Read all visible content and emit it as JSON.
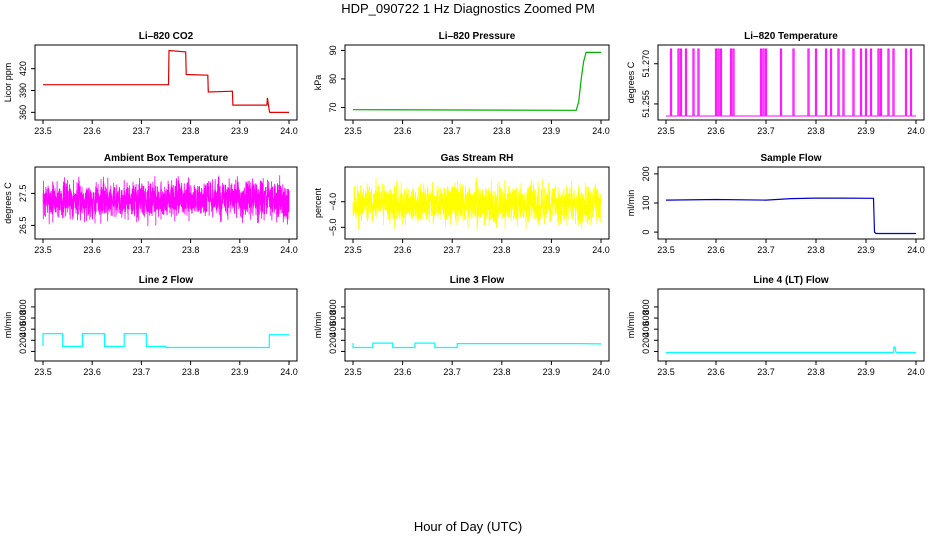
{
  "title": "HDP_090722  1 Hz Diagnostics Zoomed PM",
  "xlabel": "Hour of Day (UTC)",
  "chart_data": [
    {
      "type": "line",
      "title": "Li–820 CO2",
      "xlabel": "",
      "ylabel": "Licor ppm",
      "color": "#e00000",
      "xlim": [
        23.5,
        24.0
      ],
      "ylim": [
        355,
        447
      ],
      "xticks": [
        23.5,
        23.6,
        23.7,
        23.8,
        23.9,
        24.0
      ],
      "yticks": [
        360,
        390,
        420
      ],
      "xtick_labels": [
        "23.5",
        "23.6",
        "23.7",
        "23.8",
        "23.9",
        "24.0"
      ],
      "ytick_labels": [
        "360",
        "390",
        "420"
      ],
      "series": [
        {
          "x": [
            23.5,
            23.755,
            23.756,
            23.79,
            23.791,
            23.835,
            23.836,
            23.885,
            23.886,
            23.955,
            23.956,
            23.96,
            23.961,
            24.0
          ],
          "y": [
            398,
            398,
            445,
            443,
            412,
            411,
            388,
            389,
            370,
            370,
            380,
            362,
            360,
            360
          ]
        }
      ]
    },
    {
      "type": "line",
      "title": "Li–820 Pressure",
      "xlabel": "",
      "ylabel": "kPa",
      "color": "#00b000",
      "xlim": [
        23.5,
        24.0
      ],
      "ylim": [
        67,
        90.5
      ],
      "xticks": [
        23.5,
        23.6,
        23.7,
        23.8,
        23.9,
        24.0
      ],
      "yticks": [
        70,
        80,
        90
      ],
      "xtick_labels": [
        "23.5",
        "23.6",
        "23.7",
        "23.8",
        "23.9",
        "24.0"
      ],
      "ytick_labels": [
        "70",
        "80",
        "90"
      ],
      "series": [
        {
          "x": [
            23.5,
            23.935,
            23.95,
            23.955,
            23.96,
            23.965,
            23.97,
            24.0
          ],
          "y": [
            69.2,
            69.0,
            69.0,
            72,
            80,
            86,
            89.3,
            89.3
          ]
        }
      ]
    },
    {
      "type": "line",
      "title": "Li–820 Temperature",
      "xlabel": "",
      "ylabel": "degrees C",
      "color": "#ff00ff",
      "xlim": [
        23.5,
        24.0
      ],
      "ylim": [
        51.2505,
        51.2755
      ],
      "xticks": [
        23.5,
        23.6,
        23.7,
        23.8,
        23.9,
        24.0
      ],
      "yticks": [
        51.255,
        51.27
      ],
      "xtick_labels": [
        "23.5",
        "23.6",
        "23.7",
        "23.8",
        "23.9",
        "24.0"
      ],
      "ytick_labels": [
        "51.255",
        "51.270"
      ],
      "low_value": 51.2505,
      "high_value": 51.2755,
      "spikes": [
        23.51,
        23.525,
        23.53,
        23.54,
        23.555,
        23.565,
        23.6,
        23.605,
        23.61,
        23.63,
        23.635,
        23.69,
        23.695,
        23.7,
        23.73,
        23.755,
        23.785,
        23.8,
        23.82,
        23.83,
        23.845,
        23.855,
        23.875,
        23.89,
        23.9,
        23.91,
        23.925,
        23.93,
        23.945,
        23.955,
        23.98,
        23.99
      ]
    },
    {
      "type": "line",
      "title": "Ambient Box Temperature",
      "xlabel": "",
      "ylabel": "degrees C",
      "color": "#ff00ff",
      "xlim": [
        23.5,
        24.0
      ],
      "ylim": [
        26.2,
        28.2
      ],
      "xticks": [
        23.5,
        23.6,
        23.7,
        23.8,
        23.9,
        24.0
      ],
      "yticks": [
        26.5,
        27.5
      ],
      "xtick_labels": [
        "23.5",
        "23.6",
        "23.7",
        "23.8",
        "23.9",
        "24.0"
      ],
      "ytick_labels": [
        "26.5",
        "27.5"
      ],
      "noise": {
        "center": 27.3,
        "spread": 0.9,
        "n": 1800,
        "seed": 7
      }
    },
    {
      "type": "line",
      "title": "Gas Stream RH",
      "xlabel": "",
      "ylabel": "percent",
      "color": "#ffff00",
      "xlim": [
        23.5,
        24.0
      ],
      "ylim": [
        -5.3,
        -2.8
      ],
      "xticks": [
        23.5,
        23.6,
        23.7,
        23.8,
        23.9,
        24.0
      ],
      "yticks": [
        -5.0,
        -4.0
      ],
      "xtick_labels": [
        "23.5",
        "23.6",
        "23.7",
        "23.8",
        "23.9",
        "24.0"
      ],
      "ytick_labels": [
        "−5.0",
        "−4.0"
      ],
      "noise": {
        "center": -4.1,
        "spread": 1.1,
        "n": 1800,
        "seed": 11
      }
    },
    {
      "type": "line",
      "title": "Sample Flow",
      "xlabel": "",
      "ylabel": "ml/min",
      "color": "#0000cc",
      "xlim": [
        23.5,
        24.0
      ],
      "ylim": [
        -10,
        210
      ],
      "xticks": [
        23.5,
        23.6,
        23.7,
        23.8,
        23.9,
        24.0
      ],
      "yticks": [
        0,
        100,
        200
      ],
      "xtick_labels": [
        "23.5",
        "23.6",
        "23.7",
        "23.8",
        "23.9",
        "24.0"
      ],
      "ytick_labels": [
        "0",
        "100",
        "200"
      ],
      "series": [
        {
          "x": [
            23.5,
            23.6,
            23.7,
            23.75,
            23.8,
            23.85,
            23.915,
            23.917,
            23.92,
            24.0
          ],
          "y": [
            110,
            112,
            110,
            115,
            117,
            117,
            116,
            0,
            -5,
            -5
          ]
        }
      ]
    },
    {
      "type": "line",
      "title": "Line 2 Flow",
      "xlabel": "",
      "ylabel": "ml/min",
      "color": "#00ffff",
      "xlim": [
        23.5,
        24.0
      ],
      "ylim": [
        -100,
        1050
      ],
      "xticks": [
        23.5,
        23.6,
        23.7,
        23.8,
        23.9,
        24.0
      ],
      "yticks": [
        0,
        200,
        400,
        600,
        800
      ],
      "xtick_labels": [
        "23.5",
        "23.6",
        "23.7",
        "23.8",
        "23.9",
        "24.0"
      ],
      "ytick_labels": [
        "0",
        "200",
        "400",
        "600",
        "800"
      ],
      "series": [
        {
          "x": [
            23.5,
            23.5,
            23.54,
            23.54,
            23.58,
            23.58,
            23.625,
            23.625,
            23.665,
            23.665,
            23.71,
            23.71,
            23.75,
            23.75,
            23.96,
            23.96,
            24.0
          ],
          "y": [
            100,
            320,
            320,
            90,
            90,
            320,
            320,
            90,
            90,
            320,
            320,
            90,
            90,
            70,
            70,
            300,
            300
          ]
        }
      ]
    },
    {
      "type": "line",
      "title": "Line 3 Flow",
      "xlabel": "",
      "ylabel": "ml/min",
      "color": "#00ffff",
      "xlim": [
        23.5,
        24.0
      ],
      "ylim": [
        -100,
        1050
      ],
      "xticks": [
        23.5,
        23.6,
        23.7,
        23.8,
        23.9,
        24.0
      ],
      "yticks": [
        0,
        200,
        400,
        600,
        800
      ],
      "xtick_labels": [
        "23.5",
        "23.6",
        "23.7",
        "23.8",
        "23.9",
        "24.0"
      ],
      "ytick_labels": [
        "0",
        "200",
        "400",
        "600",
        "800"
      ],
      "series": [
        {
          "x": [
            23.5,
            23.5,
            23.54,
            23.54,
            23.58,
            23.58,
            23.625,
            23.625,
            23.665,
            23.665,
            23.71,
            23.71,
            23.96,
            24.0
          ],
          "y": [
            150,
            70,
            70,
            150,
            150,
            70,
            70,
            150,
            150,
            70,
            70,
            140,
            140,
            135
          ]
        }
      ]
    },
    {
      "type": "line",
      "title": "Line 4 (LT) Flow",
      "xlabel": "",
      "ylabel": "ml/min",
      "color": "#00ffff",
      "xlim": [
        23.5,
        24.0
      ],
      "ylim": [
        -100,
        1050
      ],
      "xticks": [
        23.5,
        23.6,
        23.7,
        23.8,
        23.9,
        24.0
      ],
      "yticks": [
        0,
        200,
        400,
        600,
        800
      ],
      "xtick_labels": [
        "23.5",
        "23.6",
        "23.7",
        "23.8",
        "23.9",
        "24.0"
      ],
      "ytick_labels": [
        "0",
        "200",
        "400",
        "600",
        "800"
      ],
      "series": [
        {
          "x": [
            23.5,
            23.955,
            23.956,
            23.958,
            23.96,
            24.0
          ],
          "y": [
            -20,
            -20,
            80,
            80,
            -20,
            -20
          ]
        }
      ]
    }
  ]
}
